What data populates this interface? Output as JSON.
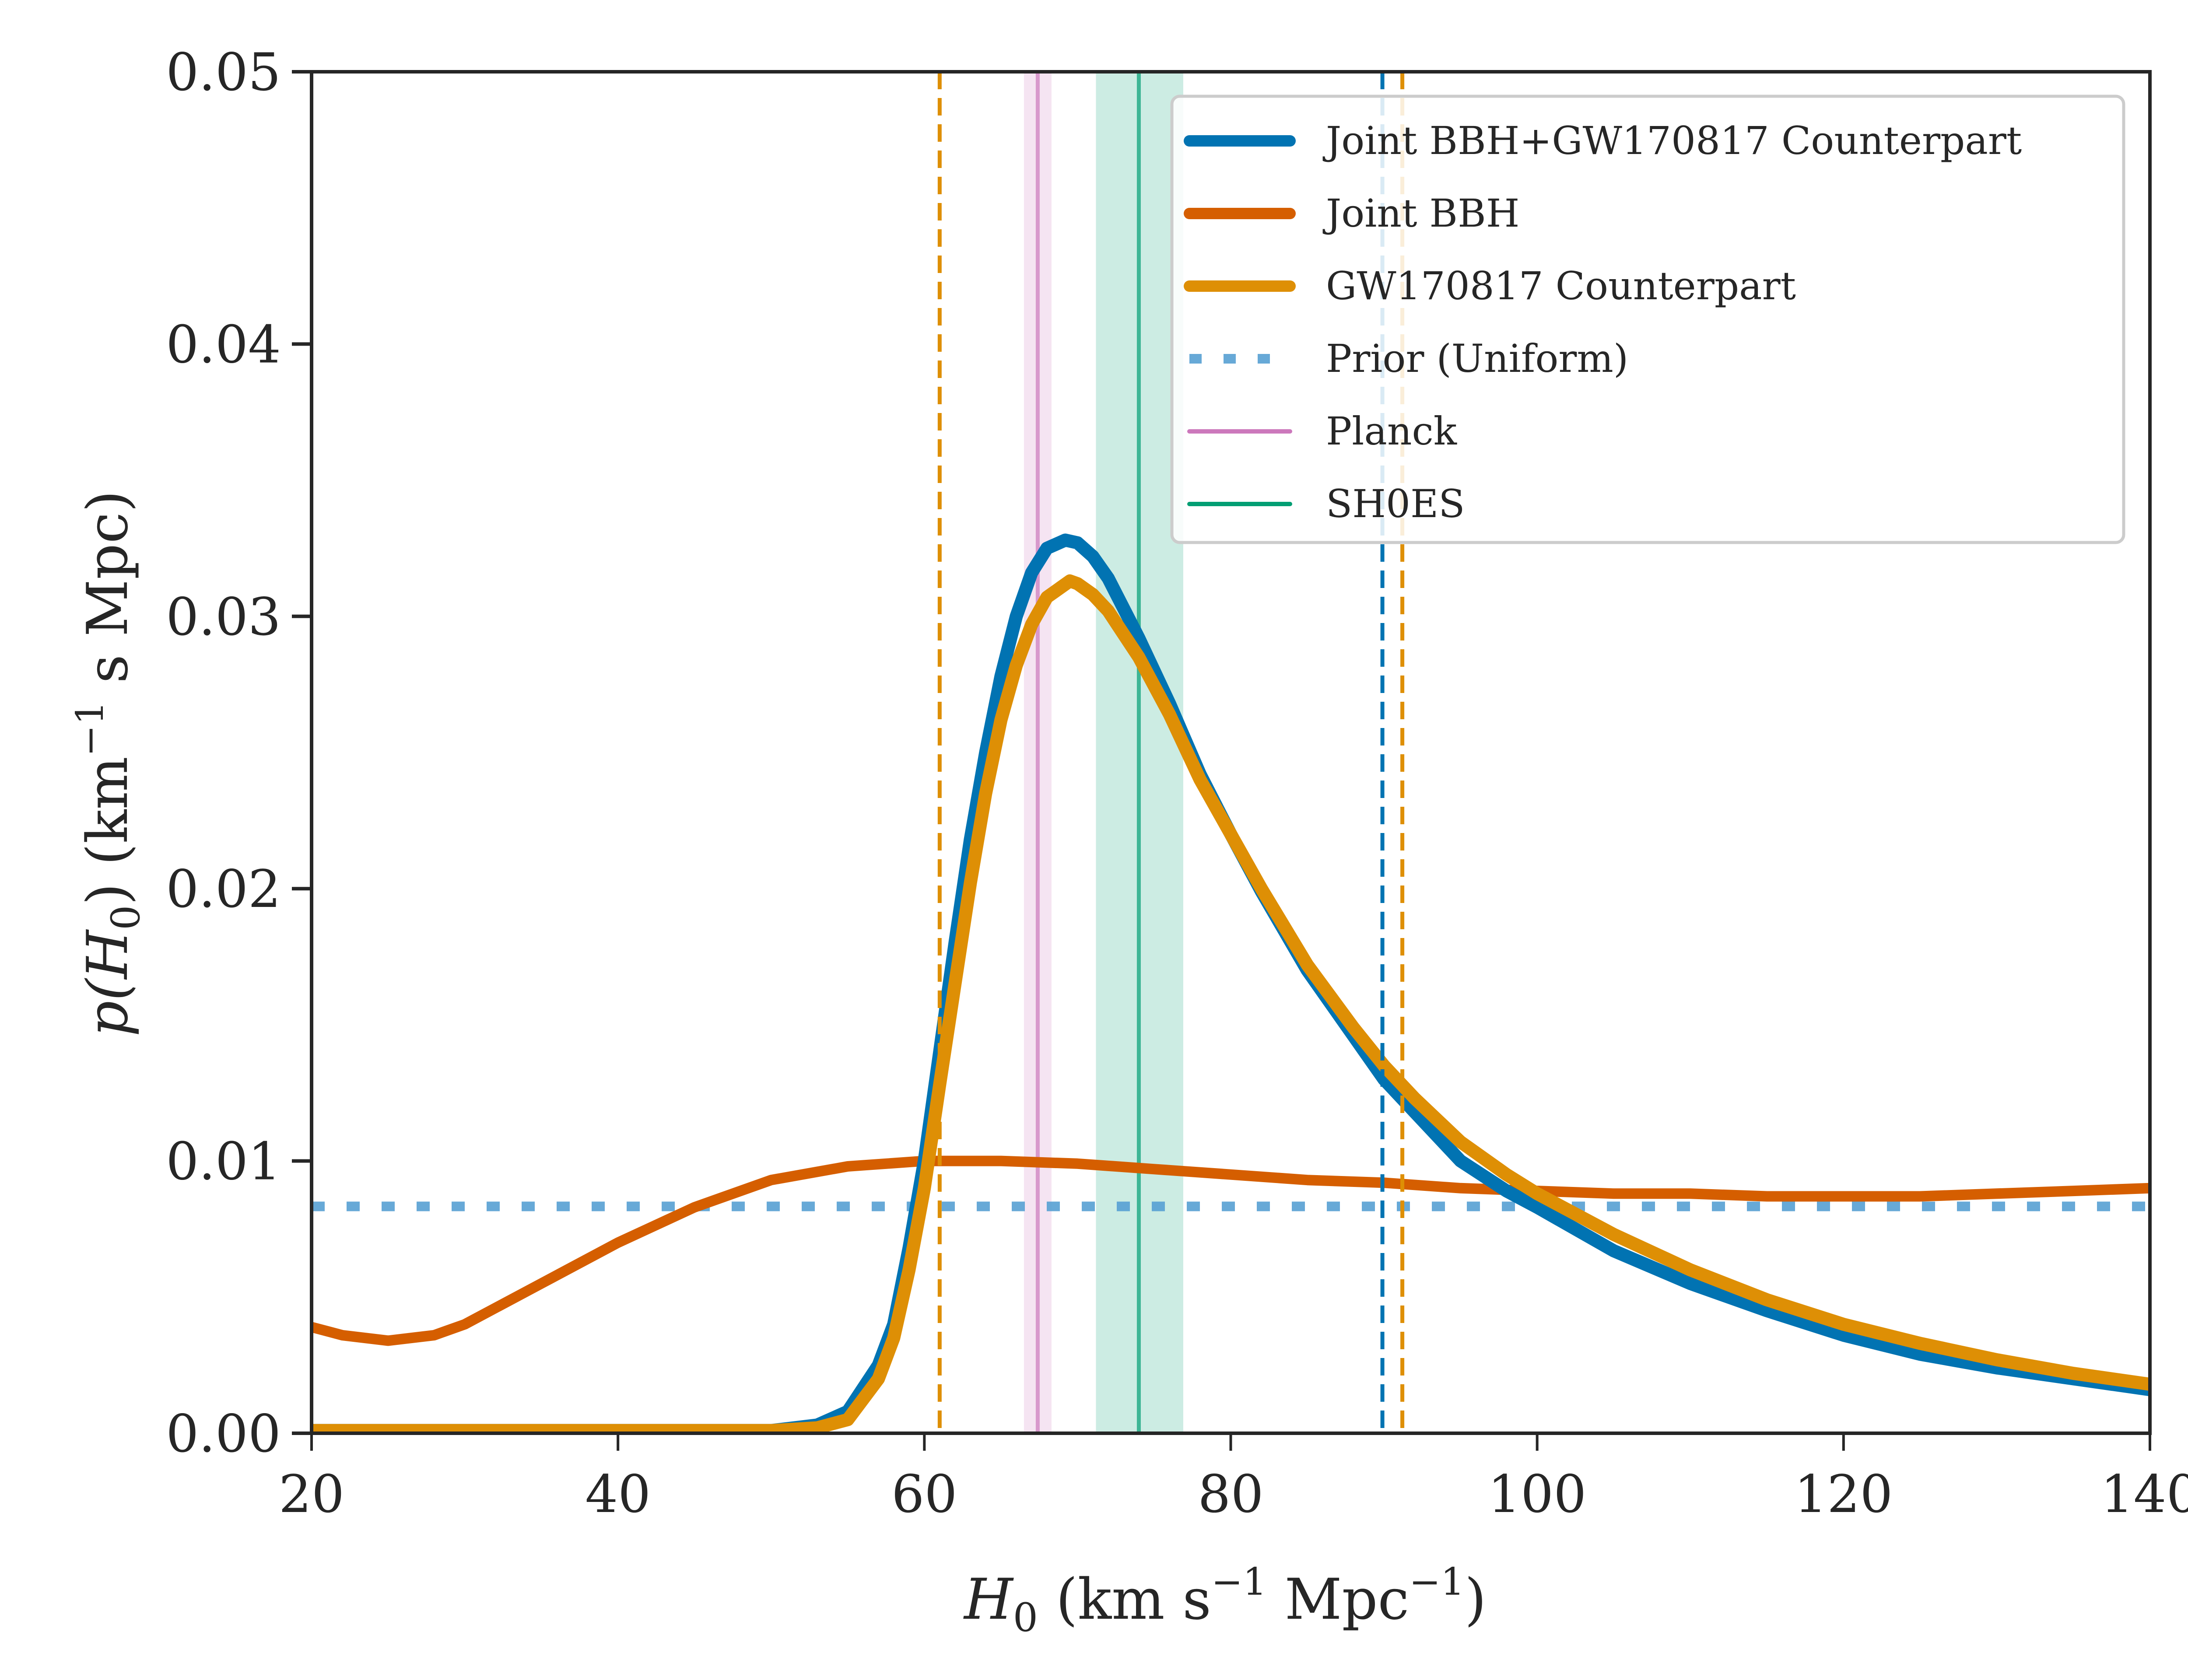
{
  "chart_data": {
    "type": "line",
    "title": "",
    "xlabel": "H_0 (km s^-1 Mpc^-1)",
    "xlabel_parts": {
      "main": "H",
      "sub": "0",
      "unit_open": " (km s",
      "exp1": "−1",
      "unit_mid": " Mpc",
      "exp2": "−1",
      "unit_close": ")"
    },
    "ylabel": "p(H_0) (km^-1 s Mpc)",
    "ylabel_parts": {
      "pre": "p(H",
      "sub": "0",
      "mid": ") (km",
      "exp": "−1",
      "post": " s Mpc)"
    },
    "xlim": [
      20,
      140
    ],
    "ylim": [
      0,
      0.05
    ],
    "xticks": [
      20,
      40,
      60,
      80,
      100,
      120,
      140
    ],
    "xtick_labels": [
      "20",
      "40",
      "60",
      "80",
      "100",
      "120",
      "140"
    ],
    "yticks": [
      0,
      0.01,
      0.02,
      0.03,
      0.04,
      0.05
    ],
    "ytick_labels": [
      "0.00",
      "0.01",
      "0.02",
      "0.03",
      "0.04",
      "0.05"
    ],
    "grid": false,
    "legend_position": "top-right",
    "series": [
      {
        "name": "Joint BBH+GW170817 Counterpart",
        "color": "#0173b2",
        "style": "solid",
        "x": [
          20,
          30,
          40,
          50,
          53,
          55,
          57,
          58,
          59,
          60,
          61,
          62,
          63,
          64,
          65,
          66,
          67,
          68,
          69.2,
          70,
          71,
          72,
          74,
          76,
          77,
          78,
          80,
          82,
          85,
          88,
          90,
          92,
          95,
          98,
          100,
          105,
          110,
          115,
          120,
          125,
          130,
          135,
          140
        ],
        "y": [
          0.0001,
          0.0001,
          0.0001,
          0.0001,
          0.0003,
          0.0008,
          0.0025,
          0.004,
          0.0068,
          0.01,
          0.014,
          0.018,
          0.0218,
          0.025,
          0.0278,
          0.03,
          0.0316,
          0.0325,
          0.0328,
          0.0327,
          0.0322,
          0.0314,
          0.0292,
          0.0268,
          0.0255,
          0.0242,
          0.022,
          0.0199,
          0.017,
          0.0146,
          0.013,
          0.0118,
          0.01,
          0.0089,
          0.0083,
          0.0067,
          0.0055,
          0.0045,
          0.0036,
          0.0029,
          0.0024,
          0.002,
          0.0016
        ]
      },
      {
        "name": "Joint BBH",
        "color": "#d55e00",
        "style": "solid",
        "x": [
          20,
          22,
          25,
          28,
          30,
          35,
          40,
          45,
          50,
          55,
          60,
          65,
          70,
          75,
          80,
          85,
          90,
          95,
          100,
          105,
          110,
          115,
          120,
          125,
          130,
          135,
          140
        ],
        "y": [
          0.0039,
          0.0036,
          0.0034,
          0.0036,
          0.004,
          0.0055,
          0.007,
          0.0083,
          0.0093,
          0.0098,
          0.01,
          0.01,
          0.0099,
          0.0097,
          0.0095,
          0.0093,
          0.0092,
          0.009,
          0.0089,
          0.0088,
          0.0088,
          0.0087,
          0.0087,
          0.0087,
          0.0088,
          0.0089,
          0.009
        ]
      },
      {
        "name": "GW170817 Counterpart",
        "color": "#de8f05",
        "style": "solid",
        "x": [
          20,
          30,
          40,
          50,
          53,
          55,
          57,
          58,
          59,
          60,
          61,
          62,
          63,
          64,
          65,
          66,
          67,
          68,
          69.5,
          70,
          71,
          72,
          74,
          76,
          77,
          78,
          80,
          82,
          85,
          88,
          90,
          92,
          95,
          98,
          100,
          105,
          110,
          115,
          120,
          125,
          130,
          135,
          140
        ],
        "y": [
          0.0001,
          0.0001,
          0.0001,
          0.0001,
          0.0002,
          0.0005,
          0.002,
          0.0035,
          0.006,
          0.009,
          0.0128,
          0.0165,
          0.0202,
          0.0235,
          0.0262,
          0.0282,
          0.0297,
          0.0307,
          0.0313,
          0.0312,
          0.0308,
          0.0302,
          0.0285,
          0.0264,
          0.0252,
          0.024,
          0.022,
          0.02,
          0.0172,
          0.0149,
          0.0135,
          0.0123,
          0.0107,
          0.0095,
          0.0088,
          0.0073,
          0.006,
          0.0049,
          0.004,
          0.0033,
          0.0027,
          0.0022,
          0.0018
        ]
      },
      {
        "name": "Prior (Uniform)",
        "color": "#56a0d3",
        "style": "dotted",
        "x": [
          20,
          140
        ],
        "y": [
          0.00833,
          0.00833
        ]
      }
    ],
    "reference_lines": [
      {
        "name": "Planck",
        "color": "#cc78bc",
        "value": 67.4,
        "band": [
          66.5,
          68.3
        ]
      },
      {
        "name": "SH0ES",
        "color": "#029e73",
        "value": 74.0,
        "band": [
          71.2,
          76.9
        ]
      }
    ],
    "interval_lines": [
      {
        "series": "GW170817 Counterpart",
        "color": "#de8f05",
        "style": "dashed",
        "values": [
          61.0,
          91.2
        ]
      },
      {
        "series": "Joint BBH+GW170817 Counterpart",
        "color": "#0173b2",
        "style": "dashed",
        "values": [
          89.9
        ]
      }
    ],
    "legend": [
      {
        "label": "Joint BBH+GW170817 Counterpart",
        "color": "#0173b2",
        "style": "thick"
      },
      {
        "label": "Joint BBH",
        "color": "#d55e00",
        "style": "thick"
      },
      {
        "label": "GW170817 Counterpart",
        "color": "#de8f05",
        "style": "thick"
      },
      {
        "label": "Prior (Uniform)",
        "color": "#56a0d3",
        "style": "dotted"
      },
      {
        "label": "Planck",
        "color": "#cc78bc",
        "style": "thin"
      },
      {
        "label": "SH0ES",
        "color": "#029e73",
        "style": "thin"
      }
    ]
  }
}
